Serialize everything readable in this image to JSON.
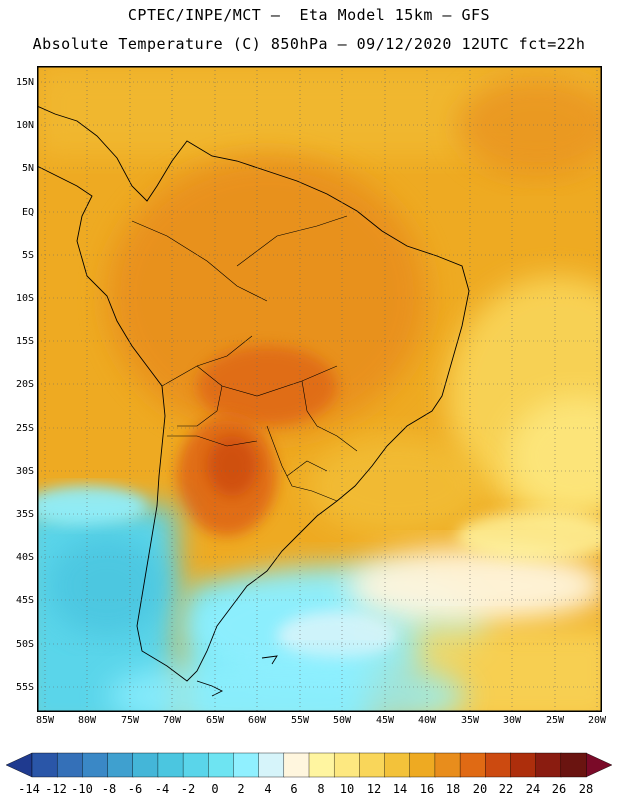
{
  "header": {
    "line1": "CPTEC/INPE/MCT –  Eta Model 15km – GFS",
    "line2": "Absolute Temperature (C) 850hPa – 09/12/2020 12UTC fct=22h"
  },
  "map": {
    "region": "South America",
    "lat_labels": [
      "15N",
      "10N",
      "5N",
      "EQ",
      "5S",
      "10S",
      "15S",
      "20S",
      "25S",
      "30S",
      "35S",
      "40S",
      "45S",
      "50S",
      "55S"
    ],
    "lon_labels": [
      "85W",
      "80W",
      "75W",
      "70W",
      "65W",
      "60W",
      "55W",
      "50W",
      "45W",
      "40W",
      "35W",
      "30W",
      "25W",
      "20W"
    ],
    "gridlines": "dotted"
  },
  "colorbar": {
    "units": "C",
    "labels": [
      "-14",
      "-12",
      "-10",
      "-8",
      "-6",
      "-4",
      "-2",
      "0",
      "2",
      "4",
      "6",
      "8",
      "10",
      "12",
      "14",
      "16",
      "18",
      "20",
      "22",
      "24",
      "26",
      "28"
    ],
    "colors": [
      "#1f3a8f",
      "#2a56a8",
      "#3470b8",
      "#3a88c6",
      "#3fa0cf",
      "#44b6d8",
      "#4bc6e0",
      "#5ad5ea",
      "#6ee4f2",
      "#90f0ff",
      "#d6f4fa",
      "#fff6de",
      "#fff5a0",
      "#fde880",
      "#f9d65a",
      "#f3c23a",
      "#eeaa22",
      "#e88d1c",
      "#e06a14",
      "#cc4a10",
      "#ad2e0c",
      "#8a1c10",
      "#6a1410",
      "#7a0a28"
    ]
  }
}
